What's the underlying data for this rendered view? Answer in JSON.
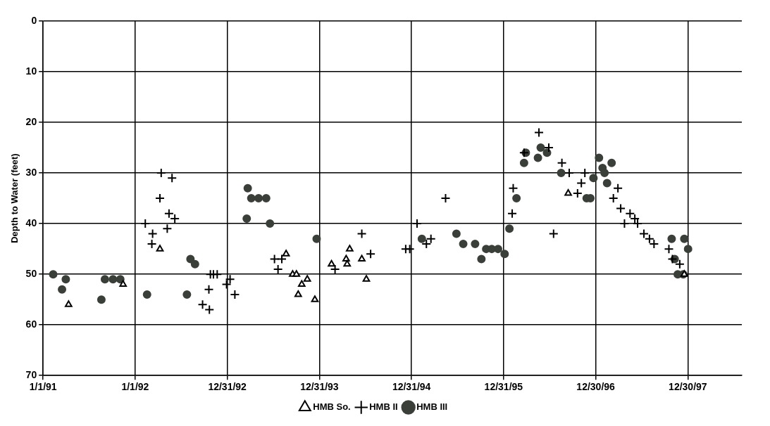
{
  "chart_data": {
    "type": "scatter",
    "ylabel": "Depth to Water (feet)",
    "xlim": [
      "1991-01-01",
      "1998-08-01"
    ],
    "xticks": [
      {
        "value": "1991-01-01",
        "label": "1/1/91"
      },
      {
        "value": "1992-01-01",
        "label": "1/1/92"
      },
      {
        "value": "1992-12-31",
        "label": "12/31/92"
      },
      {
        "value": "1993-12-31",
        "label": "12/31/93"
      },
      {
        "value": "1994-12-31",
        "label": "12/31/94"
      },
      {
        "value": "1995-12-31",
        "label": "12/31/95"
      },
      {
        "value": "1996-12-30",
        "label": "12/30/96"
      },
      {
        "value": "1997-12-30",
        "label": "12/30/97"
      }
    ],
    "ylim": [
      70,
      0
    ],
    "yticks": [
      0,
      10,
      20,
      30,
      40,
      50,
      60,
      70
    ],
    "grid": true,
    "legend": "bottom",
    "series": [
      {
        "name": "HMB So.",
        "color": "#000000",
        "marker": "triangle",
        "x": [
          "1991-04-12",
          "1991-11-14",
          "1992-04-08",
          "1993-08-21",
          "1993-09-16",
          "1993-10-01",
          "1993-10-08",
          "1993-10-22",
          "1993-11-13",
          "1993-12-13",
          "1994-02-17",
          "1994-04-16",
          "1994-04-20",
          "1994-04-30",
          "1994-06-17",
          "1994-07-05",
          "1996-09-12",
          "1997-12-16"
        ],
        "values": [
          56,
          52,
          45,
          46,
          50,
          50,
          54,
          52,
          51,
          55,
          48,
          47,
          48,
          45,
          47,
          51,
          34,
          50
        ]
      },
      {
        "name": "HMB II",
        "color": "#000000",
        "marker": "cross",
        "x": [
          "1992-02-10",
          "1992-03-07",
          "1992-03-10",
          "1992-04-08",
          "1992-04-13",
          "1992-05-07",
          "1992-05-14",
          "1992-05-26",
          "1992-06-06",
          "1992-09-24",
          "1992-10-19",
          "1992-10-21",
          "1992-10-25",
          "1992-11-06",
          "1992-11-21",
          "1992-12-28",
          "1993-01-11",
          "1993-01-30",
          "1993-07-06",
          "1993-07-20",
          "1993-08-04",
          "1994-03-03",
          "1994-06-17",
          "1994-07-22",
          "1994-12-08",
          "1994-12-24",
          "1995-01-22",
          "1995-02-28",
          "1995-03-18",
          "1995-05-15",
          "1996-02-03",
          "1996-02-07",
          "1996-03-21",
          "1996-05-19",
          "1996-06-27",
          "1996-07-16",
          "1996-08-18",
          "1996-09-16",
          "1996-10-19",
          "1996-11-03",
          "1996-11-17",
          "1997-03-10",
          "1997-03-28",
          "1997-04-08",
          "1997-04-23",
          "1997-05-15",
          "1997-06-03",
          "1997-06-14",
          "1997-07-09",
          "1997-07-31",
          "1997-08-18",
          "1997-10-16",
          "1997-10-30",
          "1997-11-28"
        ],
        "values": [
          40,
          44,
          42,
          35,
          30,
          41,
          38,
          31,
          39,
          56,
          53,
          57,
          50,
          50,
          50,
          52,
          51,
          54,
          47,
          49,
          47,
          49,
          42,
          46,
          45,
          45,
          40,
          44,
          43,
          35,
          38,
          33,
          26,
          22,
          25,
          42,
          28,
          30,
          34,
          32,
          30,
          35,
          33,
          37,
          40,
          38,
          39,
          40,
          42,
          43,
          44,
          45,
          47,
          48
        ]
      },
      {
        "name": "HMB III",
        "color": "#3b3f3a",
        "marker": "circle",
        "x": [
          "1991-02-10",
          "1991-03-17",
          "1991-04-01",
          "1991-08-20",
          "1991-09-03",
          "1991-10-05",
          "1991-11-03",
          "1992-02-17",
          "1992-07-24",
          "1992-08-07",
          "1992-08-25",
          "1993-03-18",
          "1993-03-22",
          "1993-04-05",
          "1993-05-04",
          "1993-06-03",
          "1993-06-18",
          "1993-12-20",
          "1995-02-10",
          "1995-06-27",
          "1995-07-24",
          "1995-09-09",
          "1995-10-04",
          "1995-10-23",
          "1995-11-14",
          "1995-12-09",
          "1996-01-04",
          "1996-01-23",
          "1996-02-20",
          "1996-03-21",
          "1996-03-28",
          "1996-05-15",
          "1996-05-26",
          "1996-06-20",
          "1996-08-15",
          "1996-11-24",
          "1996-12-09",
          "1996-12-21",
          "1997-01-12",
          "1997-01-26",
          "1997-02-03",
          "1997-02-13",
          "1997-03-03",
          "1997-10-27",
          "1997-11-08",
          "1997-11-20",
          "1997-12-12",
          "1997-12-16",
          "1997-12-31"
        ],
        "values": [
          50,
          53,
          51,
          55,
          51,
          51,
          51,
          54,
          54,
          47,
          48,
          39,
          33,
          35,
          35,
          35,
          40,
          43,
          43,
          42,
          44,
          44,
          47,
          45,
          45,
          45,
          46,
          41,
          35,
          28,
          26,
          27,
          25,
          26,
          30,
          35,
          35,
          31,
          27,
          29,
          30,
          32,
          28,
          43,
          47,
          50,
          50,
          43,
          45
        ]
      }
    ]
  }
}
